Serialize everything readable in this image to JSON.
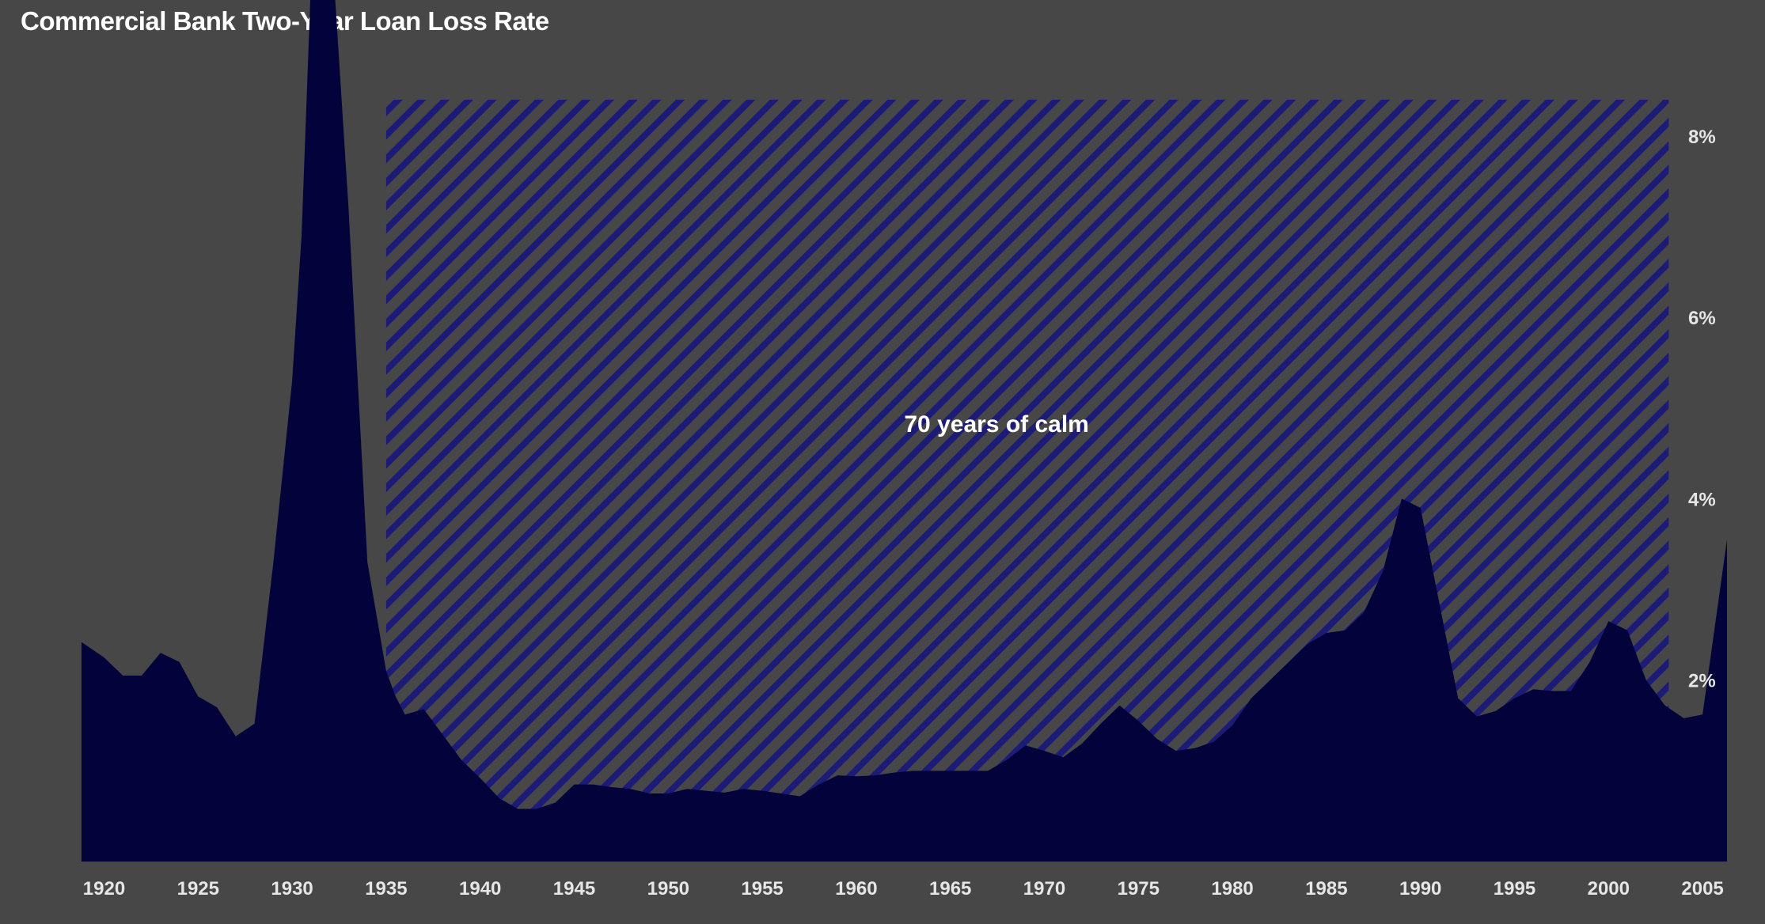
{
  "chart_data": {
    "type": "area",
    "title": "Commercial Bank Two-Year Loan Loss Rate",
    "xlabel": "",
    "ylabel": "",
    "xlim": [
      1918.8,
      2006.3
    ],
    "ylim": [
      0,
      8.4
    ],
    "y_axis_side": "right",
    "grid": false,
    "legend": "none",
    "x_ticks": [
      1920,
      1925,
      1930,
      1935,
      1940,
      1945,
      1950,
      1955,
      1960,
      1965,
      1970,
      1975,
      1980,
      1985,
      1990,
      1995,
      2000,
      2005
    ],
    "x_tick_labels": [
      "1920",
      "1925",
      "1930",
      "1935",
      "1940",
      "1945",
      "1950",
      "1955",
      "1960",
      "1965",
      "1970",
      "1975",
      "1980",
      "1985",
      "1990",
      "1995",
      "2000",
      "2005"
    ],
    "y_ticks": [
      2,
      4,
      6,
      8
    ],
    "y_tick_labels": [
      "2%",
      "4%",
      "6%",
      "8%"
    ],
    "series": [
      {
        "x": [
          1918.8,
          1920,
          1921,
          1922,
          1923,
          1924,
          1925,
          1926,
          1927,
          1928,
          1929,
          1930,
          1930.5,
          1931,
          1932,
          1933,
          1934,
          1935,
          1935.5,
          1936,
          1937,
          1938,
          1939,
          1940,
          1941,
          1942,
          1943,
          1944,
          1945,
          1946,
          1947,
          1948,
          1949,
          1950,
          1951,
          1952,
          1953,
          1954,
          1955,
          1956,
          1957,
          1958,
          1959,
          1960,
          1961,
          1962,
          1963,
          1964,
          1965,
          1966,
          1967,
          1968,
          1969,
          1970,
          1971,
          1972,
          1973,
          1974,
          1975,
          1976,
          1977,
          1978,
          1979,
          1980,
          1981,
          1982,
          1983,
          1984,
          1985,
          1986,
          1987,
          1988,
          1989,
          1990,
          1991,
          1992,
          1993,
          1994,
          1995,
          1996,
          1997,
          1998,
          1999,
          2000,
          2001,
          2002,
          2003,
          2004,
          2005,
          2006.3
        ],
        "values": [
          2.42,
          2.25,
          2.05,
          2.05,
          2.3,
          2.2,
          1.82,
          1.7,
          1.38,
          1.52,
          3.3,
          5.3,
          6.9,
          9.7,
          10.45,
          7.2,
          3.3,
          2.1,
          1.82,
          1.62,
          1.68,
          1.4,
          1.12,
          0.92,
          0.7,
          0.58,
          0.58,
          0.65,
          0.85,
          0.85,
          0.82,
          0.8,
          0.75,
          0.75,
          0.8,
          0.78,
          0.76,
          0.8,
          0.78,
          0.75,
          0.72,
          0.85,
          0.95,
          0.94,
          0.95,
          0.98,
          1.0,
          1.0,
          1.0,
          1.0,
          1.0,
          1.12,
          1.28,
          1.22,
          1.15,
          1.3,
          1.52,
          1.72,
          1.55,
          1.35,
          1.22,
          1.25,
          1.32,
          1.5,
          1.8,
          2.0,
          2.2,
          2.4,
          2.52,
          2.55,
          2.75,
          3.2,
          4.0,
          3.9,
          2.85,
          1.8,
          1.6,
          1.66,
          1.8,
          1.9,
          1.88,
          1.88,
          2.2,
          2.65,
          2.55,
          2.0,
          1.72,
          1.58,
          1.62,
          3.55
        ],
        "color": "#03023a"
      }
    ],
    "annotations": [
      {
        "type": "hatched-region",
        "x_range": [
          1935,
          2003.2
        ],
        "label": "70 years of calm",
        "hatch_color": "#1c1c78"
      }
    ],
    "colors": {
      "background": "#474747",
      "area": "#03023a",
      "hatch": "#1c1c78",
      "text": "#ffffff"
    }
  }
}
